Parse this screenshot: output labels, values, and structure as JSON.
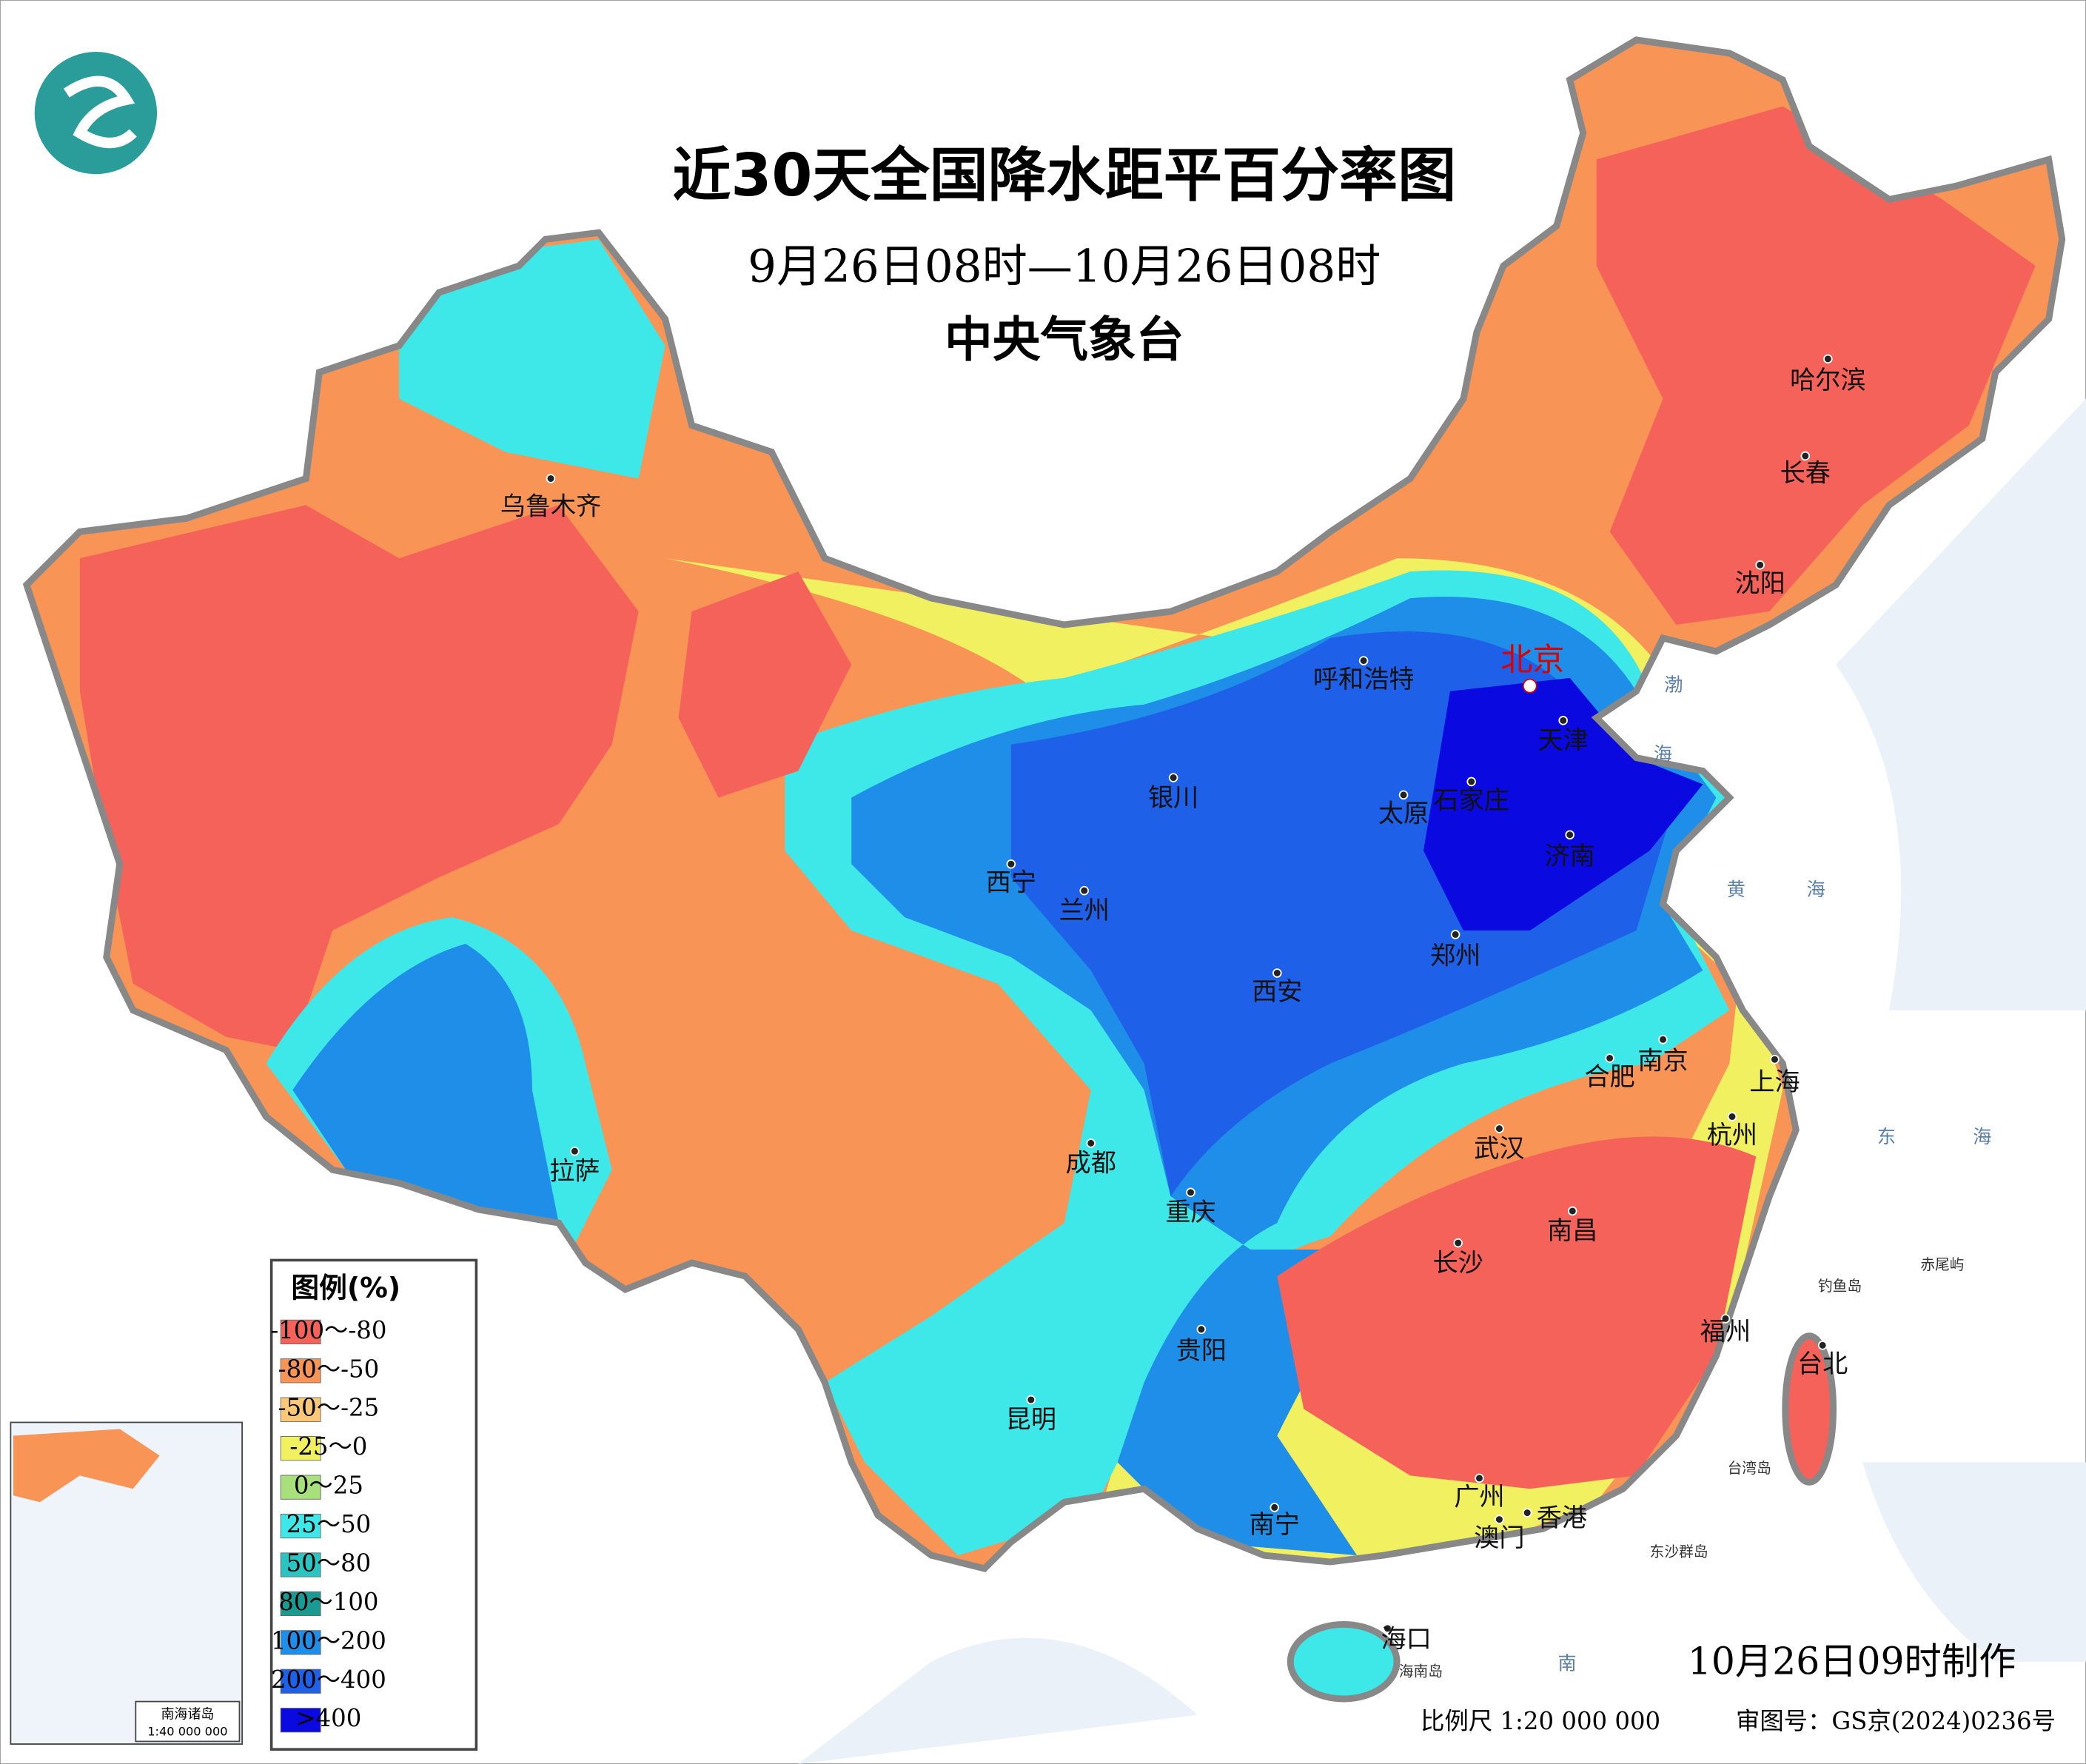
{
  "header": {
    "title": "近30天全国降水距平百分率图",
    "subtitle": "9月26日08时—10月26日08时",
    "agency": "中央气象台"
  },
  "legend": {
    "title": "图例(%)",
    "items": [
      {
        "label": "-100～-80",
        "color": "#f4625a"
      },
      {
        "label": "-80～-50",
        "color": "#f79456"
      },
      {
        "label": "-50～-25",
        "color": "#fbc878"
      },
      {
        "label": "-25～0",
        "color": "#f0f060"
      },
      {
        "label": "0～25",
        "color": "#a8e07c"
      },
      {
        "label": "25～50",
        "color": "#3fe8e8"
      },
      {
        "label": "50～80",
        "color": "#2cc4c0"
      },
      {
        "label": "80～100",
        "color": "#1a9a90"
      },
      {
        "label": "100～200",
        "color": "#1e8ee8"
      },
      {
        "label": "200～400",
        "color": "#1e60e8"
      },
      {
        "label": ">400",
        "color": "#0a0ae0"
      }
    ]
  },
  "capital": "北京",
  "cities": [
    "乌鲁木齐",
    "呼和浩特",
    "天津",
    "银川",
    "石家庄",
    "太原",
    "济南",
    "西宁",
    "兰州",
    "郑州",
    "西安",
    "合肥",
    "南京",
    "上海",
    "杭州",
    "武汉",
    "成都",
    "拉萨",
    "重庆",
    "南昌",
    "长沙",
    "贵阳",
    "福州",
    "台北",
    "昆明",
    "广州",
    "南宁",
    "香港",
    "澳门",
    "海口",
    "哈尔滨",
    "长春",
    "沈阳"
  ],
  "seas": [
    "渤",
    "海",
    "黄",
    "海",
    "东",
    "海",
    "南"
  ],
  "islands": [
    "钓鱼岛",
    "赤尾屿",
    "台湾岛",
    "东沙群岛",
    "海南岛"
  ],
  "inset": {
    "title": "南海诸岛",
    "scale": "1:40 000 000"
  },
  "footer": {
    "made": "10月26日09时制作",
    "scale": "比例尺 1:20 000 000",
    "approval": "审图号：GS京(2024)0236号"
  }
}
